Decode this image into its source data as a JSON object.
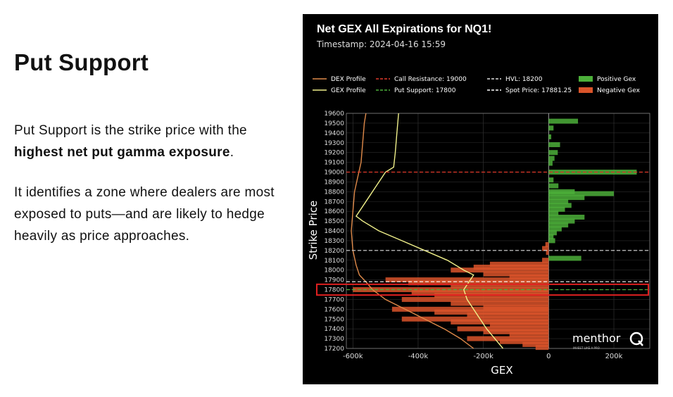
{
  "slide": {
    "heading": "Put Support",
    "para1_pre": "Put Support is the strike price with the ",
    "para1_bold": "highest net put gamma exposure",
    "para1_post": ".",
    "para2": "It identifies a zone where dealers are most exposed to puts—and are likely to hedge heavily as price approaches."
  },
  "chart_data": {
    "type": "bar",
    "orientation": "horizontal",
    "title": "Net GEX All Expirations for NQ1!",
    "subtitle": "Timestamp: 2024-04-16 15:59",
    "xlabel": "GEX",
    "ylabel": "Strike Price",
    "xlim": [
      -620000,
      310000
    ],
    "ylim": [
      17200,
      19600
    ],
    "x_ticks": [
      -600000,
      -400000,
      -200000,
      0,
      200000
    ],
    "x_tick_labels": [
      "-600k",
      "-400k",
      "-200k",
      "0",
      "200k"
    ],
    "y_ticks": [
      17200,
      17300,
      17400,
      17500,
      17600,
      17700,
      17800,
      17900,
      18000,
      18100,
      18200,
      18300,
      18400,
      18500,
      18600,
      18700,
      18800,
      18900,
      19000,
      19100,
      19200,
      19300,
      19400,
      19500,
      19600
    ],
    "grid": true,
    "legend": [
      {
        "label": "DEX Profile",
        "color": "#e08a4a",
        "style": "line"
      },
      {
        "label": "Call Resistance: 19000",
        "color": "#e23a2a",
        "style": "dashed"
      },
      {
        "label": "HVL: 18200",
        "color": "#dddddd",
        "style": "dashed"
      },
      {
        "label": "Positive Gex",
        "color": "#4caf3a",
        "style": "patch"
      },
      {
        "label": "GEX Profile",
        "color": "#f0f08a",
        "style": "line"
      },
      {
        "label": "Put Support: 17800",
        "color": "#4caf3a",
        "style": "dashed"
      },
      {
        "label": "Spot Price: 17881.25",
        "color": "#ffffff",
        "style": "dashed"
      },
      {
        "label": "Negative Gex",
        "color": "#d9542a",
        "style": "patch"
      }
    ],
    "levels": {
      "call_resistance": 19000,
      "put_support": 17800,
      "hvl": 18200,
      "spot": 17881.25
    },
    "highlight_strike": 17800,
    "colors": {
      "positive": "#4caf3a",
      "negative": "#d9542a",
      "dex": "#e08a4a",
      "gex": "#f0f08a",
      "call": "#e23a2a",
      "hvl": "#dddddd",
      "spot": "#ffffff",
      "support": "#4caf3a",
      "highlight": "#e02020"
    },
    "bars": [
      {
        "strike": 19520,
        "value": 90000
      },
      {
        "strike": 19450,
        "value": 15000
      },
      {
        "strike": 19360,
        "value": 8000
      },
      {
        "strike": 19280,
        "value": 35000
      },
      {
        "strike": 19200,
        "value": 28000
      },
      {
        "strike": 19140,
        "value": 18000
      },
      {
        "strike": 19090,
        "value": 12000
      },
      {
        "strike": 19000,
        "value": 270000
      },
      {
        "strike": 18920,
        "value": 15000
      },
      {
        "strike": 18860,
        "value": 30000
      },
      {
        "strike": 18800,
        "value": 80000
      },
      {
        "strike": 18780,
        "value": 200000
      },
      {
        "strike": 18740,
        "value": 110000
      },
      {
        "strike": 18700,
        "value": 60000
      },
      {
        "strike": 18660,
        "value": 70000
      },
      {
        "strike": 18620,
        "value": 50000
      },
      {
        "strike": 18580,
        "value": 30000
      },
      {
        "strike": 18540,
        "value": 110000
      },
      {
        "strike": 18500,
        "value": 80000
      },
      {
        "strike": 18460,
        "value": 60000
      },
      {
        "strike": 18420,
        "value": 40000
      },
      {
        "strike": 18380,
        "value": 25000
      },
      {
        "strike": 18340,
        "value": 15000
      },
      {
        "strike": 18300,
        "value": 20000
      },
      {
        "strike": 18260,
        "value": -10000
      },
      {
        "strike": 18220,
        "value": -20000
      },
      {
        "strike": 18180,
        "value": -8000
      },
      {
        "strike": 18120,
        "value": 100000
      },
      {
        "strike": 18100,
        "value": -20000
      },
      {
        "strike": 18060,
        "value": -180000
      },
      {
        "strike": 18030,
        "value": -230000
      },
      {
        "strike": 18000,
        "value": -300000
      },
      {
        "strike": 17960,
        "value": -200000
      },
      {
        "strike": 17930,
        "value": -120000
      },
      {
        "strike": 17900,
        "value": -500000
      },
      {
        "strike": 17870,
        "value": -430000
      },
      {
        "strike": 17840,
        "value": -300000
      },
      {
        "strike": 17800,
        "value": -600000
      },
      {
        "strike": 17770,
        "value": -420000
      },
      {
        "strike": 17740,
        "value": -350000
      },
      {
        "strike": 17700,
        "value": -450000
      },
      {
        "strike": 17660,
        "value": -300000
      },
      {
        "strike": 17620,
        "value": -200000
      },
      {
        "strike": 17600,
        "value": -480000
      },
      {
        "strike": 17570,
        "value": -350000
      },
      {
        "strike": 17540,
        "value": -250000
      },
      {
        "strike": 17500,
        "value": -450000
      },
      {
        "strike": 17470,
        "value": -300000
      },
      {
        "strike": 17440,
        "value": -180000
      },
      {
        "strike": 17400,
        "value": -280000
      },
      {
        "strike": 17370,
        "value": -200000
      },
      {
        "strike": 17340,
        "value": -120000
      },
      {
        "strike": 17300,
        "value": -250000
      },
      {
        "strike": 17270,
        "value": -150000
      },
      {
        "strike": 17240,
        "value": -80000
      },
      {
        "strike": 17210,
        "value": -40000
      }
    ],
    "dex_profile": [
      {
        "strike": 19600,
        "value": -560000
      },
      {
        "strike": 19500,
        "value": -565000
      },
      {
        "strike": 19300,
        "value": -570000
      },
      {
        "strike": 19100,
        "value": -575000
      },
      {
        "strike": 18950,
        "value": -585000
      },
      {
        "strike": 18800,
        "value": -595000
      },
      {
        "strike": 18600,
        "value": -600000
      },
      {
        "strike": 18400,
        "value": -605000
      },
      {
        "strike": 18200,
        "value": -600000
      },
      {
        "strike": 18050,
        "value": -590000
      },
      {
        "strike": 17950,
        "value": -580000
      },
      {
        "strike": 17880,
        "value": -560000
      },
      {
        "strike": 17800,
        "value": -540000
      },
      {
        "strike": 17700,
        "value": -500000
      },
      {
        "strike": 17600,
        "value": -440000
      },
      {
        "strike": 17500,
        "value": -380000
      },
      {
        "strike": 17400,
        "value": -320000
      },
      {
        "strike": 17300,
        "value": -270000
      },
      {
        "strike": 17200,
        "value": -230000
      }
    ],
    "gex_profile": [
      {
        "strike": 19600,
        "value": -460000
      },
      {
        "strike": 19400,
        "value": -465000
      },
      {
        "strike": 19200,
        "value": -470000
      },
      {
        "strike": 19050,
        "value": -475000
      },
      {
        "strike": 19000,
        "value": -500000
      },
      {
        "strike": 18850,
        "value": -530000
      },
      {
        "strike": 18700,
        "value": -560000
      },
      {
        "strike": 18550,
        "value": -590000
      },
      {
        "strike": 18500,
        "value": -570000
      },
      {
        "strike": 18400,
        "value": -520000
      },
      {
        "strike": 18300,
        "value": -450000
      },
      {
        "strike": 18200,
        "value": -380000
      },
      {
        "strike": 18100,
        "value": -310000
      },
      {
        "strike": 18000,
        "value": -260000
      },
      {
        "strike": 17950,
        "value": -230000
      },
      {
        "strike": 17900,
        "value": -240000
      },
      {
        "strike": 17800,
        "value": -260000
      },
      {
        "strike": 17700,
        "value": -250000
      },
      {
        "strike": 17600,
        "value": -230000
      },
      {
        "strike": 17500,
        "value": -210000
      },
      {
        "strike": 17400,
        "value": -190000
      },
      {
        "strike": 17300,
        "value": -165000
      },
      {
        "strike": 17200,
        "value": -140000
      }
    ]
  },
  "logo": {
    "text": "menthor",
    "mark": "Q",
    "tagline": "INVEST LIKE A PRO"
  }
}
